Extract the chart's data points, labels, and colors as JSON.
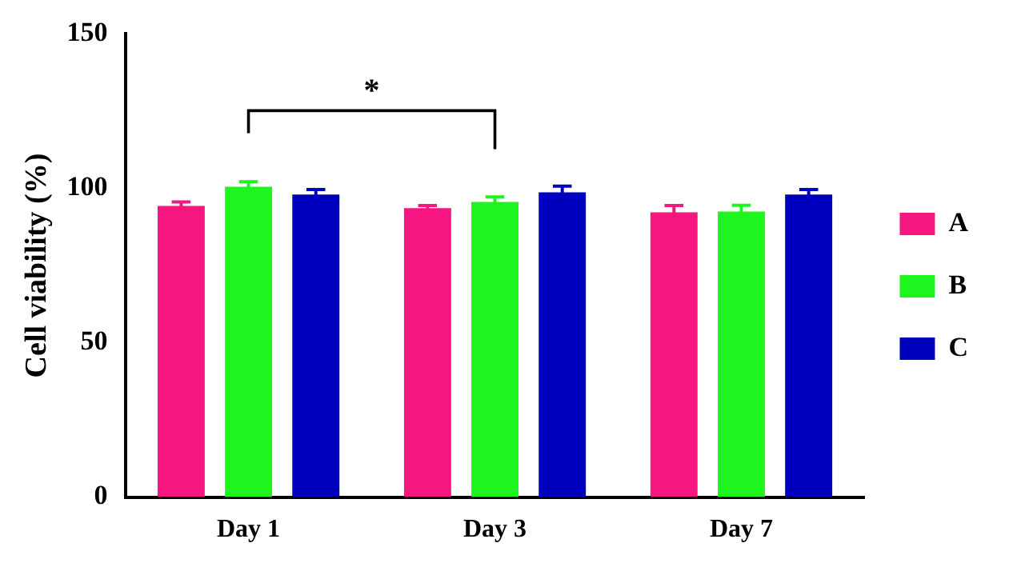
{
  "chart_data": {
    "type": "bar",
    "ylabel": "Cell viability (%)",
    "categories": [
      "Day 1",
      "Day 3",
      "Day 7"
    ],
    "series": [
      {
        "name": "A",
        "color": "#f5177f",
        "values": [
          94.3,
          93.6,
          92.2
        ],
        "errors": [
          1.3,
          0.8,
          2.2
        ]
      },
      {
        "name": "B",
        "color": "#1ef51e",
        "values": [
          100.5,
          95.6,
          92.5
        ],
        "errors": [
          1.6,
          1.6,
          2
        ]
      },
      {
        "name": "C",
        "color": "#0000bf",
        "values": [
          98,
          98.7,
          98
        ],
        "errors": [
          1.6,
          2,
          1.6
        ]
      }
    ],
    "ylim": [
      0,
      150
    ],
    "yticks": [
      0,
      50,
      100,
      150
    ],
    "grid": false,
    "legend": "right",
    "annotations": [
      "*"
    ]
  }
}
